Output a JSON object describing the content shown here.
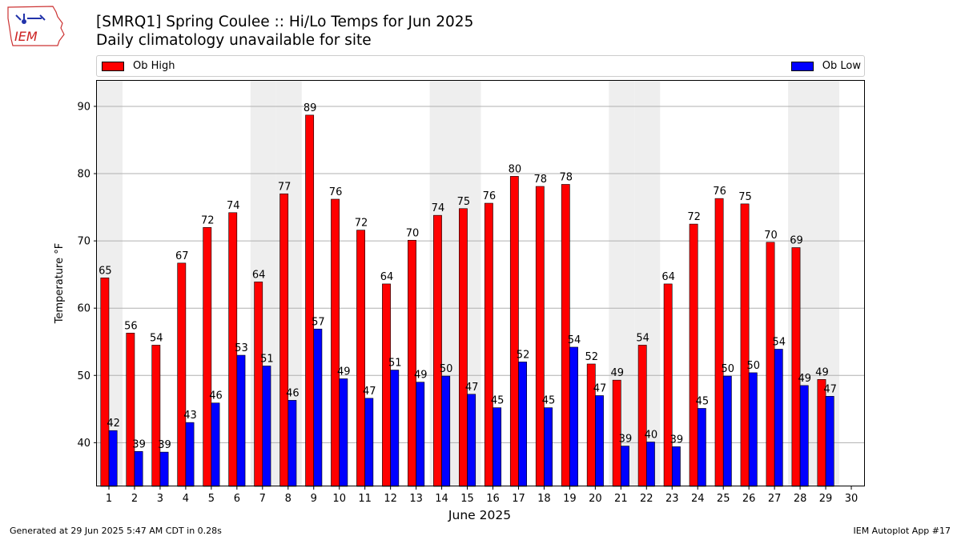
{
  "header": {
    "title_line1": "[SMRQ1] Spring Coulee :: Hi/Lo Temps for Jun 2025",
    "title_line2": "Daily climatology unavailable for site"
  },
  "logo": {
    "text": "IEM"
  },
  "legend": {
    "high_label": "Ob High",
    "low_label": "Ob Low"
  },
  "footer": {
    "left": "Generated at 29 Jun 2025 5:47 AM CDT in 0.28s",
    "right": "IEM Autoplot App #17"
  },
  "colors": {
    "high": "#ff0000",
    "low": "#0000ff",
    "weekend_band": "#eeeeee",
    "grid": "#b0b0b0"
  },
  "chart_data": {
    "type": "bar",
    "xlabel": "June 2025",
    "ylabel": "Temperature °F",
    "categories": [
      1,
      2,
      3,
      4,
      5,
      6,
      7,
      8,
      9,
      10,
      11,
      12,
      13,
      14,
      15,
      16,
      17,
      18,
      19,
      20,
      21,
      22,
      23,
      24,
      25,
      26,
      27,
      28,
      29,
      30
    ],
    "series": [
      {
        "name": "Ob High",
        "values": [
          64.5,
          56.3,
          54.5,
          66.7,
          72.0,
          74.2,
          63.9,
          77.0,
          88.7,
          76.2,
          71.6,
          63.6,
          70.1,
          73.8,
          74.8,
          75.6,
          79.6,
          78.1,
          78.4,
          51.7,
          49.3,
          54.5,
          63.6,
          72.5,
          76.3,
          75.5,
          69.8,
          69.0,
          49.4,
          null
        ],
        "labels": [
          "65",
          "56",
          "54",
          "67",
          "72",
          "74",
          "64",
          "77",
          "89",
          "76",
          "72",
          "64",
          "70",
          "74",
          "75",
          "76",
          "80",
          "78",
          "78",
          "52",
          "49",
          "54",
          "64",
          "72",
          "76",
          "75",
          "70",
          "69",
          "49",
          ""
        ]
      },
      {
        "name": "Ob Low",
        "values": [
          41.8,
          38.7,
          38.6,
          43.0,
          45.9,
          53.0,
          51.4,
          46.3,
          56.9,
          49.5,
          46.6,
          50.8,
          49.0,
          49.9,
          47.2,
          45.2,
          52.0,
          45.2,
          54.2,
          47.0,
          39.5,
          40.1,
          39.4,
          45.1,
          49.9,
          50.4,
          53.9,
          48.5,
          46.9,
          null
        ],
        "labels": [
          "42",
          "39",
          "39",
          "43",
          "46",
          "53",
          "51",
          "46",
          "57",
          "49",
          "47",
          "51",
          "49",
          "50",
          "47",
          "45",
          "52",
          "45",
          "54",
          "47",
          "39",
          "40",
          "39",
          "45",
          "50",
          "50",
          "54",
          "49",
          "47",
          ""
        ]
      }
    ],
    "weekend_days": [
      1,
      7,
      8,
      14,
      15,
      21,
      22,
      28,
      29
    ],
    "ylim": [
      33.5,
      93.8
    ],
    "yticks": [
      40,
      50,
      60,
      70,
      80,
      90
    ],
    "grid": "y",
    "legend": "top"
  }
}
